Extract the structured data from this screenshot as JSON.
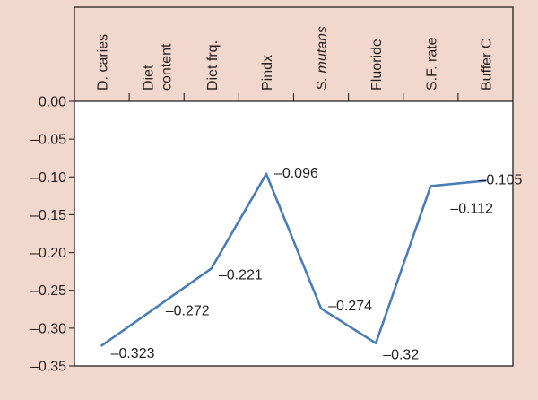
{
  "chart_data": {
    "type": "line",
    "categories": [
      {
        "label": "D. caries",
        "italic": false
      },
      {
        "label": "Diet content",
        "italic": false
      },
      {
        "label": "Diet frq.",
        "italic": false
      },
      {
        "label": "Pindx",
        "italic": false
      },
      {
        "label": "S. mutans",
        "italic": true
      },
      {
        "label": "Fluoride",
        "italic": false
      },
      {
        "label": "S.F. rate",
        "italic": false
      },
      {
        "label": "Buffer C",
        "italic": false
      }
    ],
    "series": [
      {
        "values": [
          -0.323,
          -0.272,
          -0.221,
          -0.096,
          -0.274,
          -0.32,
          -0.112,
          -0.105
        ],
        "point_labels": [
          "–0.323",
          "–0.272",
          "–0.221",
          "–0.096",
          "–0.274",
          "–0.32",
          "–0.112",
          "–0.105"
        ],
        "color": "#4a7db8"
      }
    ],
    "y_ticks": [
      {
        "value": 0.0,
        "label": "0.00"
      },
      {
        "value": -0.05,
        "label": "–0.05"
      },
      {
        "value": -0.1,
        "label": "–0.10"
      },
      {
        "value": -0.15,
        "label": "–0.15"
      },
      {
        "value": -0.2,
        "label": "–0.20"
      },
      {
        "value": -0.25,
        "label": "–0.25"
      },
      {
        "value": -0.3,
        "label": "–0.30"
      },
      {
        "value": -0.35,
        "label": "–0.35"
      }
    ],
    "ylim": [
      -0.35,
      0.0
    ],
    "x_axis_position": "top",
    "grid": false,
    "colors": {
      "background": "#f2d7cc",
      "plot_area": "#ffffff",
      "axis": "#231f20",
      "text": "#231f20"
    }
  }
}
